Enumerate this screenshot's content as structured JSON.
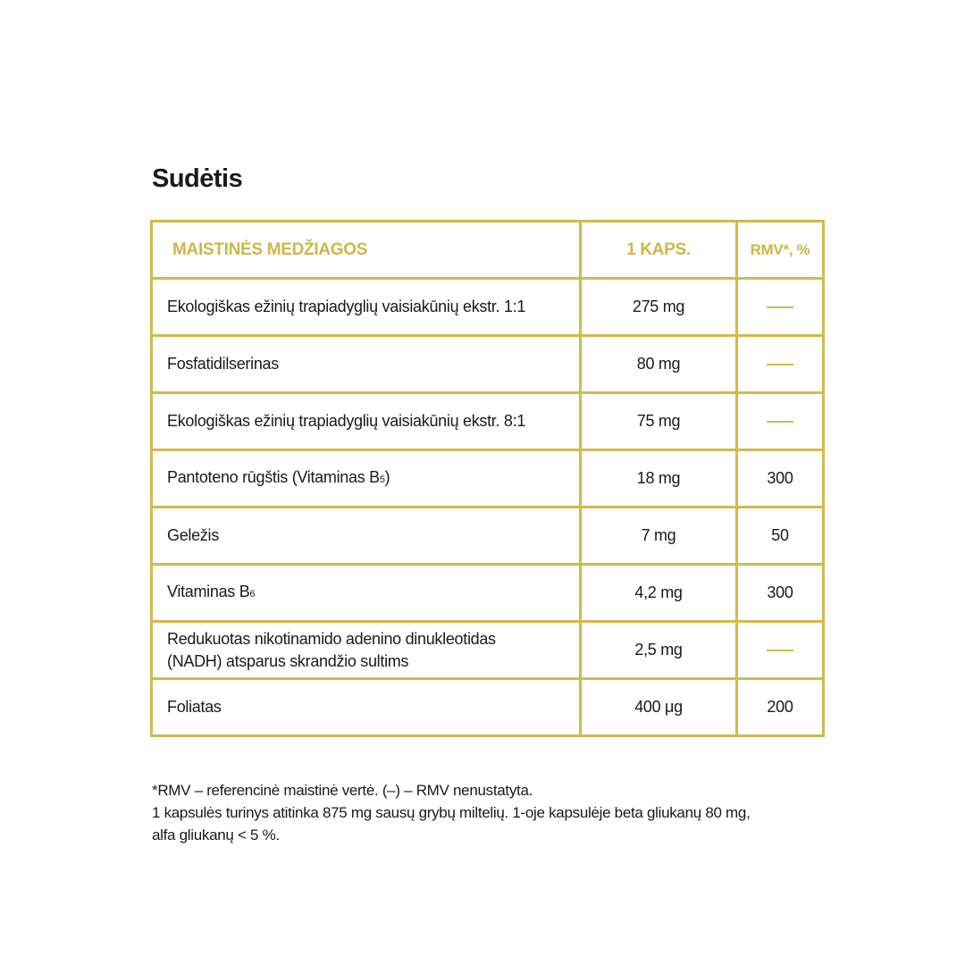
{
  "title": "Sudėtis",
  "colors": {
    "accent": "#d4b94c"
  },
  "table": {
    "headers": [
      "MAISTINĖS MEDŽIAGOS",
      "1 KAPS.",
      "RMV*, %"
    ],
    "rows": [
      {
        "name": "Ekologiškas ežinių trapiadyglių vaisiakūnių ekstr. 1:1",
        "sub": "",
        "suffix": "",
        "amount": "275 mg",
        "rmv": "—"
      },
      {
        "name": "Fosfatidilserinas",
        "sub": "",
        "suffix": "",
        "amount": "80 mg",
        "rmv": "—"
      },
      {
        "name": "Ekologiškas ežinių trapiadyglių vaisiakūnių ekstr. 8:1",
        "sub": "",
        "suffix": "",
        "amount": "75 mg",
        "rmv": "—"
      },
      {
        "name": "Pantoteno rūgštis (Vitaminas B",
        "sub": "5",
        "suffix": ")",
        "amount": "18 mg",
        "rmv": "300"
      },
      {
        "name": "Geležis",
        "sub": "",
        "suffix": "",
        "amount": "7 mg",
        "rmv": "50"
      },
      {
        "name": "Vitaminas B",
        "sub": "6",
        "suffix": "",
        "amount": "4,2 mg",
        "rmv": "300"
      },
      {
        "name": "Redukuotas nikotinamido adenino dinukleotidas",
        "name2": "(NADH) atsparus skrandžio sultims",
        "sub": "",
        "suffix": "",
        "amount": "2,5 mg",
        "rmv": "—"
      },
      {
        "name": "Foliatas",
        "sub": "",
        "suffix": "",
        "amount": "400 μg",
        "rmv": "200"
      }
    ]
  },
  "notes": [
    "*RMV – referencinė maistinė vertė. (–) – RMV nenustatyta.",
    "1 kapsulės turinys atitinka 875 mg sausų grybų miltelių. 1-oje kapsulėje beta gliukanų 80 mg,",
    "alfa gliukanų < 5 %."
  ]
}
